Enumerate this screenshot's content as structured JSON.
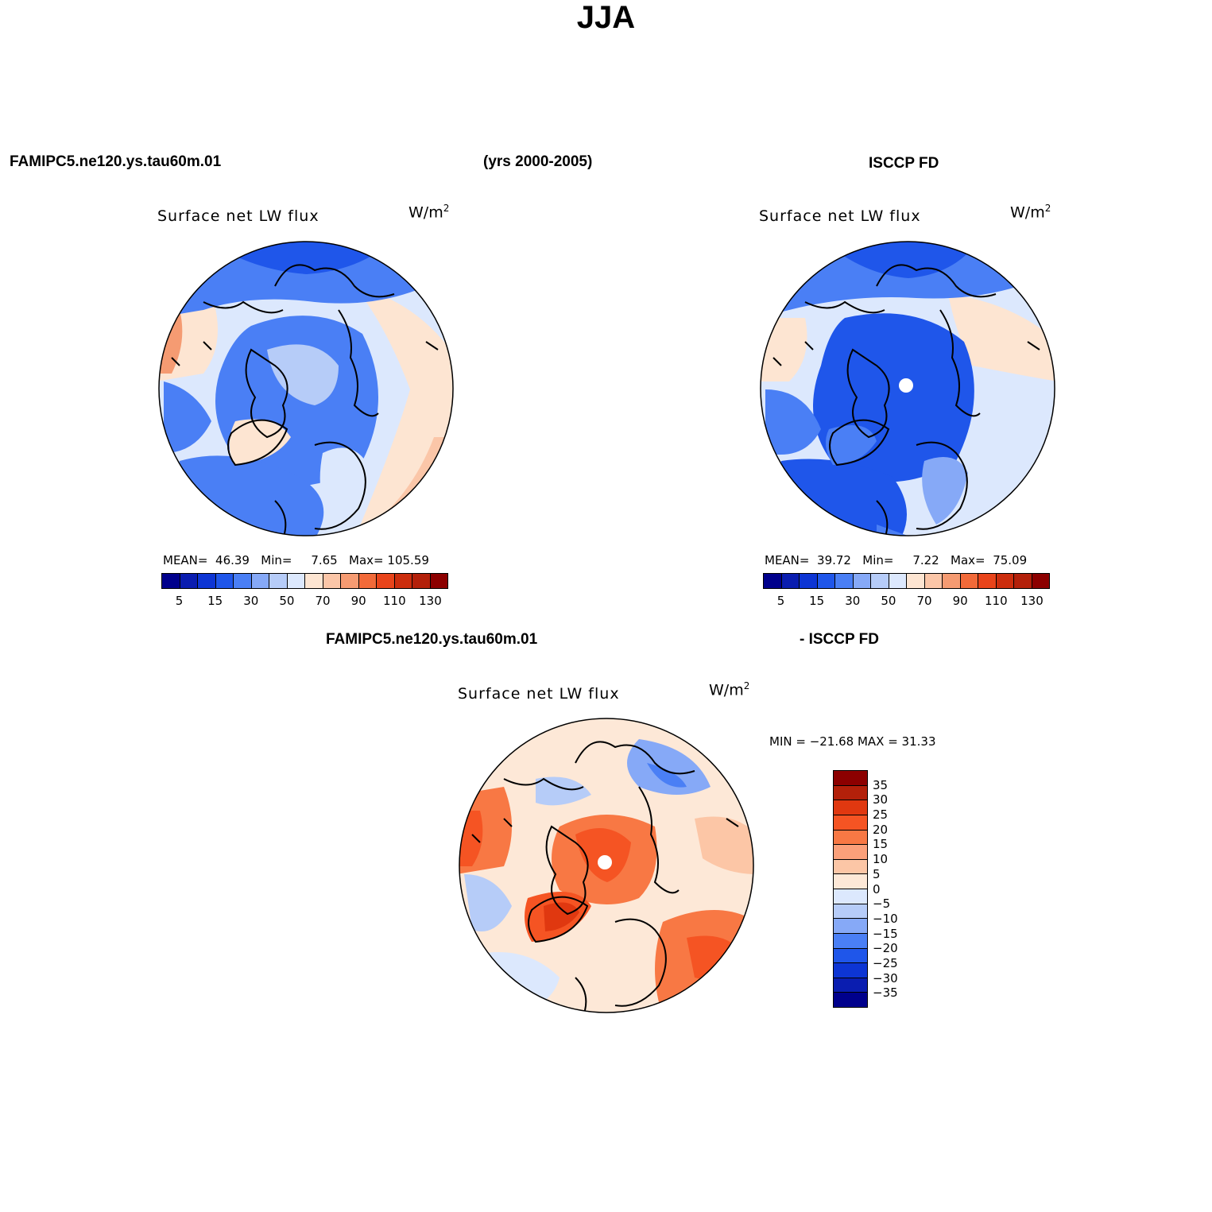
{
  "title": "JJA",
  "header": {
    "model": "FAMIPC5.ne120.ys.tau60m.01",
    "years": "(yrs 2000-2005)",
    "obs": "ISCCP FD",
    "diff_model": "FAMIPC5.ne120.ys.tau60m.01",
    "diff_obs": "- ISCCP FD"
  },
  "panels": {
    "model": {
      "title": "Surface net LW flux",
      "units": "W/m",
      "units_exp": "2",
      "mean_label": "MEAN=",
      "mean": "46.39",
      "min_label": "Min=",
      "min": "7.65",
      "max_label": "Max=",
      "max": "105.59"
    },
    "obs": {
      "title": "Surface net LW flux",
      "units": "W/m",
      "units_exp": "2",
      "mean_label": "MEAN=",
      "mean": "39.72",
      "min_label": "Min=",
      "min": "7.22",
      "max_label": "Max=",
      "max": "75.09"
    },
    "diff": {
      "title": "Surface net LW flux",
      "units": "W/m",
      "units_exp": "2",
      "minmax": "MIN = −21.68 MAX =  31.33"
    }
  },
  "colorbar_main": {
    "ticks": [
      "5",
      "15",
      "30",
      "50",
      "70",
      "90",
      "110",
      "130"
    ],
    "colors": [
      "#00008c",
      "#0a1db0",
      "#0d35d4",
      "#1f56ea",
      "#4a7ff5",
      "#86a9f7",
      "#b6ccf8",
      "#dce8fd",
      "#fde5d2",
      "#fbc6a8",
      "#f59b72",
      "#f26a39",
      "#e9441a",
      "#cc2d0d",
      "#b3200a",
      "#8c0000"
    ]
  },
  "colorbar_diff": {
    "ticks": [
      "35",
      "30",
      "25",
      "20",
      "15",
      "10",
      "5",
      "0",
      "−5",
      "−10",
      "−15",
      "−20",
      "−25",
      "−30",
      "−35"
    ],
    "colors": [
      "#8c0000",
      "#b3200a",
      "#e03810",
      "#f55423",
      "#f87844",
      "#fba07a",
      "#fcc6a6",
      "#fde8d7",
      "#dce8fd",
      "#b6ccf8",
      "#86a9f7",
      "#4a7ff5",
      "#1f56ea",
      "#0d35d4",
      "#0a1db0",
      "#00008c"
    ]
  }
}
